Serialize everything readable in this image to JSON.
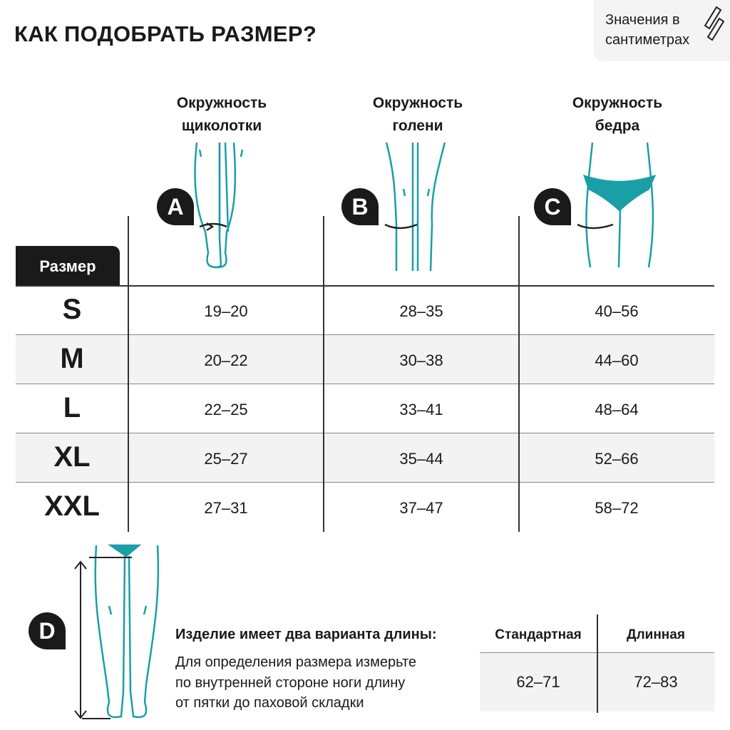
{
  "title": "КАК ПОДОБРАТЬ РАЗМЕР?",
  "units_note": {
    "line1": "Значения в",
    "line2": "сантиметрах",
    "icon": "measuring-tape-icon"
  },
  "size_header": "Размер",
  "columns": [
    {
      "badge": "A",
      "line1": "Окружность",
      "line2": "щиколотки"
    },
    {
      "badge": "B",
      "line1": "Окружность",
      "line2": "голени"
    },
    {
      "badge": "C",
      "line1": "Окружность",
      "line2": "бедра"
    }
  ],
  "rows": [
    {
      "size": "S",
      "values": [
        "19–20",
        "28–35",
        "40–56"
      ]
    },
    {
      "size": "M",
      "values": [
        "20–22",
        "30–38",
        "44–60"
      ]
    },
    {
      "size": "L",
      "values": [
        "22–25",
        "33–41",
        "48–64"
      ]
    },
    {
      "size": "XL",
      "values": [
        "25–27",
        "35–44",
        "52–66"
      ]
    },
    {
      "size": "XXL",
      "values": [
        "27–31",
        "37–47",
        "58–72"
      ]
    }
  ],
  "length": {
    "badge": "D",
    "heading": "Изделие имеет два варианта длины:",
    "lines": [
      "Для определения размера измерьте",
      "по внутренней стороне ноги длину",
      "от пятки до паховой складки"
    ],
    "headers": [
      "Стандартная",
      "Длинная"
    ],
    "values": [
      "62–71",
      "72–83"
    ]
  },
  "colors": {
    "accent": "#1a9fa6",
    "dark": "#1a1a1a",
    "row_alt": "#f3f3f3"
  }
}
